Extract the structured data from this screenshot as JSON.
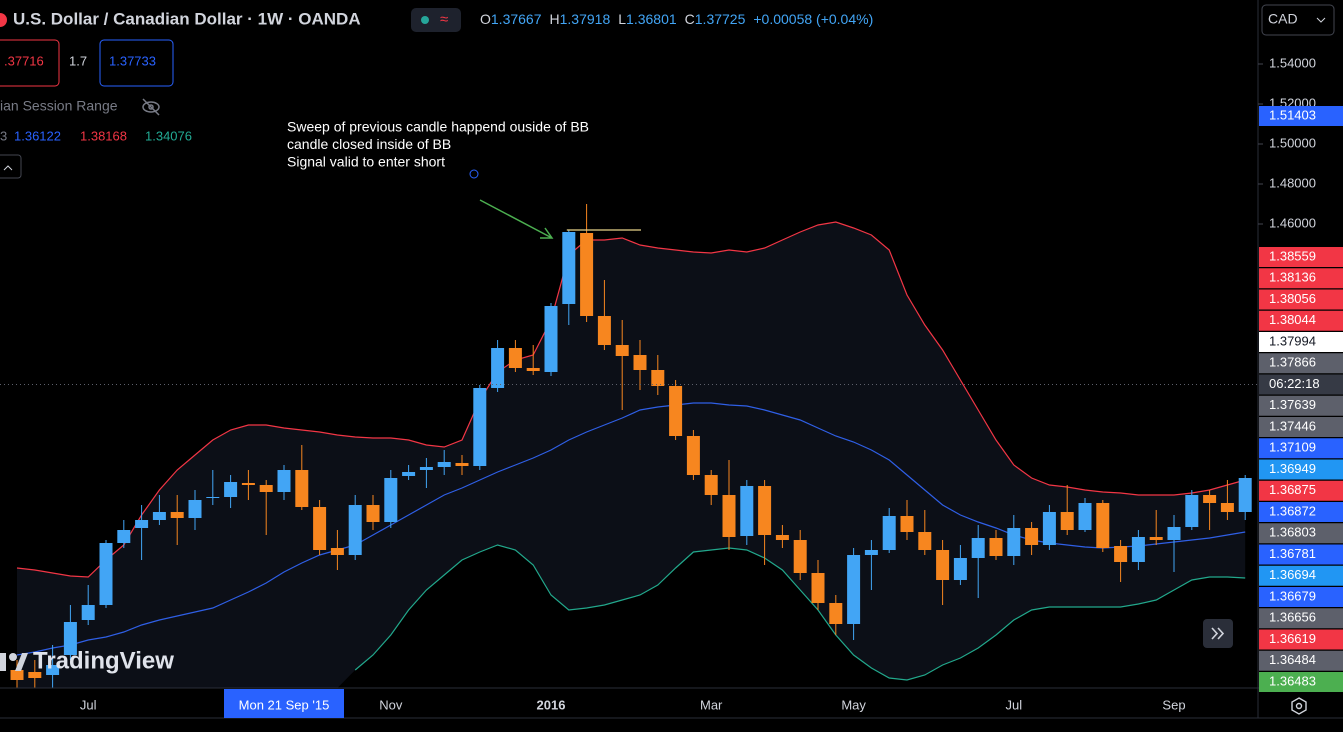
{
  "header": {
    "title": "U.S. Dollar / Canadian Dollar · 1W · OANDA",
    "ohlc": [
      {
        "label": "O",
        "value": "1.37667"
      },
      {
        "label": "H",
        "value": "1.37918"
      },
      {
        "label": "L",
        "value": "1.36801"
      },
      {
        "label": "C",
        "value": "1.37725"
      }
    ],
    "change": "+0.00058 (+0.04%)",
    "sell": ".37716",
    "spread": "1.7",
    "buy": "1.37733",
    "indicator_name": "ian Session Range",
    "bb_label": "3",
    "bb_values": [
      "1.36122",
      "1.38168",
      "1.34076"
    ],
    "currency": "CAD",
    "logo": "TradingView"
  },
  "chart_data": {
    "type": "candlestick",
    "annotation": [
      "Sweep of previous candle happend ouside of BB",
      "candle closed inside of BB",
      "Signal valid to enter short"
    ],
    "level_line": 1.457,
    "up_color": "#42a5f5",
    "down_color": "#f7861f",
    "ylim": [
      1.228,
      1.572
    ],
    "yticks": [
      {
        "value": 1.54,
        "label": "1.54000"
      },
      {
        "value": 1.52,
        "label": "1.52000"
      },
      {
        "value": 1.5,
        "label": "1.50000"
      },
      {
        "value": 1.48,
        "label": "1.48000"
      },
      {
        "value": 1.46,
        "label": "1.46000"
      }
    ],
    "xticks": [
      {
        "value": 4,
        "label": "Jul"
      },
      {
        "value": 21,
        "label": "Nov"
      },
      {
        "value": 30,
        "label": "2016",
        "bold": true
      },
      {
        "value": 39,
        "label": "Mar"
      },
      {
        "value": 47,
        "label": "May"
      },
      {
        "value": 56,
        "label": "Jul"
      },
      {
        "value": 65,
        "label": "Sep"
      }
    ],
    "crosshair_x": {
      "value": 15,
      "label": "Mon 21 Sep '15"
    },
    "open": [
      1.237,
      1.236,
      1.2345,
      1.2445,
      1.262,
      1.2695,
      1.3005,
      1.308,
      1.312,
      1.316,
      1.313,
      1.323,
      1.3235,
      1.3305,
      1.3295,
      1.326,
      1.337,
      1.3185,
      1.298,
      1.2945,
      1.3195,
      1.311,
      1.334,
      1.337,
      1.3385,
      1.3405,
      1.339,
      1.378,
      1.398,
      1.388,
      1.386,
      1.42,
      1.4555,
      1.414,
      1.3995,
      1.3945,
      1.387,
      1.379,
      1.354,
      1.3345,
      1.3245,
      1.304,
      1.329,
      1.3045,
      1.302,
      1.2855,
      1.2705,
      1.26,
      1.2945,
      1.297,
      1.314,
      1.306,
      1.297,
      1.282,
      1.293,
      1.303,
      1.294,
      1.308,
      1.2995,
      1.316,
      1.307,
      1.3205,
      1.299,
      1.291,
      1.3035,
      1.302,
      1.3085,
      1.3245,
      1.3205,
      1.316
    ],
    "high": [
      1.242,
      1.242,
      1.2495,
      1.2695,
      1.2795,
      1.302,
      1.312,
      1.3195,
      1.3245,
      1.3245,
      1.327,
      1.337,
      1.3345,
      1.337,
      1.332,
      1.3395,
      1.3495,
      1.322,
      1.307,
      1.3245,
      1.3245,
      1.337,
      1.3395,
      1.343,
      1.347,
      1.3445,
      1.3795,
      1.402,
      1.402,
      1.3995,
      1.4205,
      1.457,
      1.47,
      1.432,
      1.412,
      1.402,
      1.3945,
      1.382,
      1.357,
      1.337,
      1.342,
      1.332,
      1.332,
      1.3095,
      1.307,
      1.292,
      1.2745,
      1.298,
      1.302,
      1.318,
      1.322,
      1.317,
      1.302,
      1.2995,
      1.3095,
      1.307,
      1.3145,
      1.311,
      1.3195,
      1.3295,
      1.323,
      1.322,
      1.302,
      1.307,
      1.317,
      1.3145,
      1.327,
      1.327,
      1.332,
      1.3345
    ],
    "low": [
      1.228,
      1.228,
      1.228,
      1.242,
      1.2595,
      1.268,
      1.298,
      1.292,
      1.3095,
      1.2995,
      1.307,
      1.3195,
      1.318,
      1.322,
      1.3045,
      1.322,
      1.317,
      1.2945,
      1.287,
      1.292,
      1.307,
      1.308,
      1.332,
      1.328,
      1.3345,
      1.3345,
      1.337,
      1.376,
      1.386,
      1.3845,
      1.384,
      1.4095,
      1.411,
      1.397,
      1.367,
      1.377,
      1.3745,
      1.352,
      1.332,
      1.3195,
      1.297,
      1.2995,
      1.2895,
      1.298,
      1.282,
      1.267,
      1.2545,
      1.252,
      1.277,
      1.2955,
      1.302,
      1.2945,
      1.2695,
      1.2795,
      1.273,
      1.292,
      1.2895,
      1.2945,
      1.297,
      1.3045,
      1.306,
      1.296,
      1.281,
      1.287,
      1.2995,
      1.286,
      1.307,
      1.307,
      1.312,
      1.312
    ],
    "close": [
      1.232,
      1.233,
      1.2395,
      1.261,
      1.2695,
      1.3005,
      1.307,
      1.312,
      1.316,
      1.313,
      1.322,
      1.3235,
      1.331,
      1.3295,
      1.326,
      1.337,
      1.3185,
      1.297,
      1.2945,
      1.3195,
      1.311,
      1.333,
      1.336,
      1.3385,
      1.341,
      1.339,
      1.378,
      1.398,
      1.388,
      1.3865,
      1.419,
      1.456,
      1.414,
      1.3995,
      1.394,
      1.387,
      1.379,
      1.354,
      1.3345,
      1.3245,
      1.3035,
      1.329,
      1.3045,
      1.302,
      1.2855,
      1.2705,
      1.26,
      1.2945,
      1.297,
      1.314,
      1.306,
      1.297,
      1.282,
      1.293,
      1.303,
      1.294,
      1.308,
      1.2995,
      1.316,
      1.307,
      1.3205,
      1.298,
      1.291,
      1.3035,
      1.302,
      1.3085,
      1.3245,
      1.3205,
      1.316,
      1.333
    ],
    "bands": {
      "upper": {
        "color": "#f23645",
        "values": [
          1.288,
          1.287,
          1.2855,
          1.284,
          1.2835,
          1.292,
          1.2995,
          1.3145,
          1.327,
          1.337,
          1.3445,
          1.352,
          1.357,
          1.3595,
          1.3595,
          1.358,
          1.357,
          1.356,
          1.3545,
          1.3535,
          1.353,
          1.353,
          1.352,
          1.3495,
          1.3485,
          1.352,
          1.372,
          1.386,
          1.392,
          1.3945,
          1.412,
          1.4445,
          1.452,
          1.452,
          1.453,
          1.4495,
          1.448,
          1.447,
          1.446,
          1.4455,
          1.447,
          1.446,
          1.448,
          1.452,
          1.456,
          1.4595,
          1.461,
          1.458,
          1.4545,
          1.447,
          1.4245,
          1.4095,
          1.397,
          1.382,
          1.367,
          1.352,
          1.3395,
          1.333,
          1.3295,
          1.3285,
          1.327,
          1.326,
          1.3255,
          1.3245,
          1.3245,
          1.3245,
          1.3255,
          1.327,
          1.3295,
          1.332
        ]
      },
      "middle": {
        "color": "#2f5fe6",
        "values": [
          1.2445,
          1.246,
          1.248,
          1.2495,
          1.252,
          1.2535,
          1.256,
          1.2595,
          1.262,
          1.264,
          1.266,
          1.268,
          1.272,
          1.276,
          1.2805,
          1.286,
          1.2905,
          1.2945,
          1.297,
          1.2995,
          1.3045,
          1.3095,
          1.3145,
          1.3195,
          1.3245,
          1.328,
          1.332,
          1.336,
          1.3395,
          1.343,
          1.347,
          1.352,
          1.356,
          1.3595,
          1.363,
          1.367,
          1.3685,
          1.3695,
          1.3705,
          1.3705,
          1.3695,
          1.369,
          1.367,
          1.3645,
          1.362,
          1.358,
          1.354,
          1.351,
          1.347,
          1.342,
          1.3345,
          1.327,
          1.3195,
          1.3145,
          1.311,
          1.308,
          1.3045,
          1.302,
          1.3005,
          1.2995,
          1.2985,
          1.298,
          1.2985,
          1.299,
          1.3,
          1.301,
          1.302,
          1.303,
          1.3045,
          1.306
        ]
      },
      "lower": {
        "color": "#22a88c",
        "values": [
          null,
          null,
          null,
          null,
          null,
          null,
          null,
          null,
          null,
          null,
          null,
          null,
          null,
          null,
          null,
          null,
          null,
          null,
          null,
          1.237,
          1.2445,
          1.2545,
          1.267,
          1.277,
          1.2845,
          1.292,
          1.296,
          1.2995,
          1.297,
          1.2895,
          1.2745,
          1.267,
          1.268,
          1.2695,
          1.272,
          1.2745,
          1.2795,
          1.288,
          1.296,
          1.297,
          1.298,
          1.297,
          1.293,
          1.287,
          1.277,
          1.267,
          1.2545,
          1.2445,
          1.238,
          1.233,
          1.232,
          1.2345,
          1.2395,
          1.243,
          1.248,
          1.2545,
          1.262,
          1.267,
          1.2685,
          1.2685,
          1.2685,
          1.2685,
          1.2685,
          1.27,
          1.272,
          1.277,
          1.282,
          1.2835,
          1.2835,
          1.283
        ]
      }
    },
    "price_tags": [
      {
        "value": 1.51403,
        "color": "#2962ff"
      },
      {
        "value": 1.38559,
        "color": "#f23645"
      },
      {
        "value": 1.38136,
        "color": "#f23645"
      },
      {
        "value": 1.38056,
        "color": "#f23645"
      },
      {
        "value": 1.38044,
        "color": "#f23645"
      },
      {
        "value": 1.37994,
        "color": "#ffffff",
        "text_color": "#131722"
      },
      {
        "value": 1.37866,
        "color": "#5d606b"
      },
      {
        "label": "06:22:18",
        "color": "#363a45"
      },
      {
        "value": 1.37639,
        "color": "#5d606b"
      },
      {
        "value": 1.37446,
        "color": "#5d606b"
      },
      {
        "value": 1.37109,
        "color": "#2962ff"
      },
      {
        "value": 1.36949,
        "color": "#2196f3"
      },
      {
        "value": 1.36875,
        "color": "#f23645"
      },
      {
        "value": 1.36872,
        "color": "#2962ff"
      },
      {
        "value": 1.36803,
        "color": "#5d606b"
      },
      {
        "value": 1.36781,
        "color": "#2962ff"
      },
      {
        "value": 1.36694,
        "color": "#2196f3"
      },
      {
        "value": 1.36679,
        "color": "#2962ff"
      },
      {
        "value": 1.36656,
        "color": "#5d606b"
      },
      {
        "value": 1.36619,
        "color": "#f23645"
      },
      {
        "value": 1.36484,
        "color": "#5d606b"
      },
      {
        "value": 1.36483,
        "color": "#4caf50"
      }
    ]
  }
}
